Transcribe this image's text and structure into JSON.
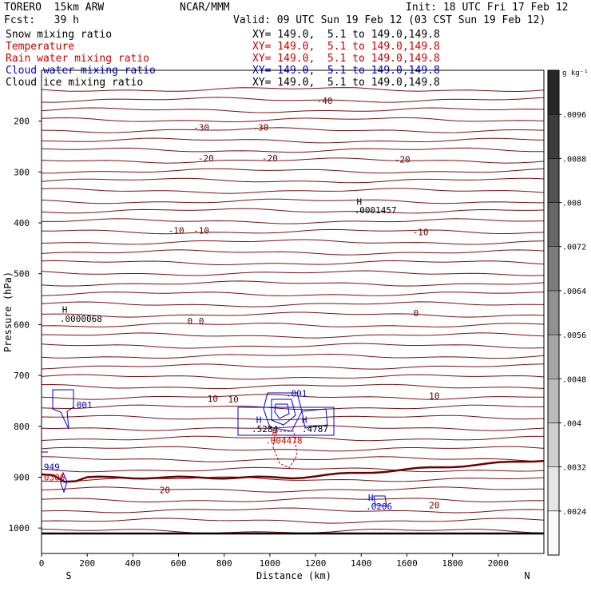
{
  "header": {
    "title": "TORERO  15km ARW",
    "center": "NCAR/MMM",
    "init": "Init: 18 UTC Fri 17 Feb 12",
    "fcst": "Fcst:   39 h",
    "valid": "Valid: 09 UTC Sun 19 Feb 12 (03 CST Sun 19 Feb 12)"
  },
  "fields": [
    {
      "label": "Snow mixing ratio",
      "xy": "XY= 149.0,  5.1 to 149.0,149.8",
      "color": "#000000"
    },
    {
      "label": "Temperature",
      "xy": "XY= 149.0,  5.1 to 149.0,149.8",
      "color": "#cc0000"
    },
    {
      "label": "Rain water mixing ratio",
      "xy": "XY= 149.0,  5.1 to 149.0,149.8",
      "color": "#cc0000"
    },
    {
      "label": "Cloud water mixing ratio",
      "xy": "XY= 149.0,  5.1 to 149.0,149.8",
      "color": "#0000cc"
    },
    {
      "label": "Cloud ice mixing ratio",
      "xy": "XY= 149.0,  5.1 to 149.0,149.8",
      "color": "#000000"
    }
  ],
  "chart_data": {
    "type": "cross-section contour",
    "xlabel": "Distance (km)",
    "ylabel": "Pressure (hPa)",
    "xlim": [
      0,
      2200
    ],
    "ylim": [
      1050,
      100
    ],
    "x_ticks": [
      0,
      200,
      400,
      600,
      800,
      1000,
      1200,
      1400,
      1600,
      1800,
      2000
    ],
    "y_ticks": [
      200,
      300,
      400,
      500,
      600,
      700,
      800,
      900,
      1000
    ],
    "x_end_labels": [
      "S",
      "N"
    ],
    "colorbar": {
      "unit": "g kg⁻¹",
      "ticks": [
        ".0024",
        ".0032",
        ".004",
        ".0048",
        ".0056",
        ".0064",
        ".0072",
        ".008",
        ".0088",
        ".0096"
      ]
    },
    "temperature_labels": [
      {
        "text": "-40",
        "x": 1240,
        "p": 160
      },
      {
        "text": "-30",
        "x": 700,
        "p": 212
      },
      {
        "text": "-30",
        "x": 960,
        "p": 212
      },
      {
        "text": "-20",
        "x": 720,
        "p": 273
      },
      {
        "text": "-20",
        "x": 1000,
        "p": 273
      },
      {
        "text": "-20",
        "x": 1580,
        "p": 275
      },
      {
        "text": "-10",
        "x": 590,
        "p": 415
      },
      {
        "text": "-10",
        "x": 700,
        "p": 415
      },
      {
        "text": "-10",
        "x": 1660,
        "p": 418
      },
      {
        "text": "0",
        "x": 650,
        "p": 593
      },
      {
        "text": "0",
        "x": 700,
        "p": 593
      },
      {
        "text": "0",
        "x": 1640,
        "p": 577
      },
      {
        "text": "10",
        "x": 750,
        "p": 745
      },
      {
        "text": "10",
        "x": 840,
        "p": 747
      },
      {
        "text": "10",
        "x": 1720,
        "p": 740
      },
      {
        "text": "20",
        "x": 540,
        "p": 925
      },
      {
        "text": "20",
        "x": 1720,
        "p": 955
      }
    ],
    "annotations": [
      {
        "text": "H",
        "x": 1380,
        "p": 358,
        "color": "#000000"
      },
      {
        "text": ".0001457",
        "x": 1370,
        "p": 375,
        "color": "#000000"
      },
      {
        "text": "H",
        "x": 90,
        "p": 570,
        "color": "#000000"
      },
      {
        "text": ".0000068",
        "x": 80,
        "p": 588,
        "color": "#000000"
      },
      {
        "text": ".001",
        "x": 1070,
        "p": 735,
        "color": "#0000cc"
      },
      {
        "text": ".001",
        "x": 130,
        "p": 758,
        "color": "#0000cc"
      },
      {
        "text": "H",
        "x": 940,
        "p": 787,
        "color": "#0000cc"
      },
      {
        "text": ".5284",
        "x": 920,
        "p": 805,
        "color": "#000000"
      },
      {
        "text": "H",
        "x": 1140,
        "p": 787,
        "color": "#0000cc"
      },
      {
        "text": ".4787",
        "x": 1140,
        "p": 805,
        "color": "#000000"
      },
      {
        "text": "H",
        "x": 1010,
        "p": 812,
        "color": "#cc0000"
      },
      {
        "text": ".004478",
        "x": 980,
        "p": 828,
        "color": "#cc0000"
      },
      {
        "text": "949",
        "x": 10,
        "p": 880,
        "color": "#0000cc"
      },
      {
        "text": "0306",
        "x": 10,
        "p": 900,
        "color": "#cc0000"
      },
      {
        "text": "H",
        "x": 1430,
        "p": 940,
        "color": "#0000cc"
      },
      {
        "text": ".0206",
        "x": 1420,
        "p": 957,
        "color": "#0000cc"
      }
    ]
  }
}
